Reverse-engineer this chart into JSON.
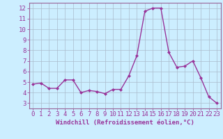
{
  "x": [
    0,
    1,
    2,
    3,
    4,
    5,
    6,
    7,
    8,
    9,
    10,
    11,
    12,
    13,
    14,
    15,
    16,
    17,
    18,
    19,
    20,
    21,
    22,
    23
  ],
  "y": [
    4.8,
    4.9,
    4.4,
    4.4,
    5.2,
    5.2,
    4.0,
    4.2,
    4.1,
    3.9,
    4.3,
    4.3,
    5.6,
    7.5,
    11.7,
    12.0,
    12.0,
    7.8,
    6.4,
    6.5,
    7.0,
    5.4,
    3.6,
    3.0
  ],
  "line_color": "#993399",
  "marker": "D",
  "marker_size": 2.0,
  "linewidth": 1.0,
  "xlabel": "Windchill (Refroidissement éolien,°C)",
  "ylabel": "",
  "ylim": [
    2.5,
    12.5
  ],
  "xlim": [
    -0.5,
    23.5
  ],
  "yticks": [
    3,
    4,
    5,
    6,
    7,
    8,
    9,
    10,
    11,
    12
  ],
  "xticks": [
    0,
    1,
    2,
    3,
    4,
    5,
    6,
    7,
    8,
    9,
    10,
    11,
    12,
    13,
    14,
    15,
    16,
    17,
    18,
    19,
    20,
    21,
    22,
    23
  ],
  "background_color": "#cceeff",
  "grid_color": "#aabbcc",
  "tick_label_color": "#993399",
  "xlabel_color": "#993399",
  "xlabel_fontsize": 6.5,
  "tick_fontsize": 6.5,
  "spine_color": "#996699"
}
